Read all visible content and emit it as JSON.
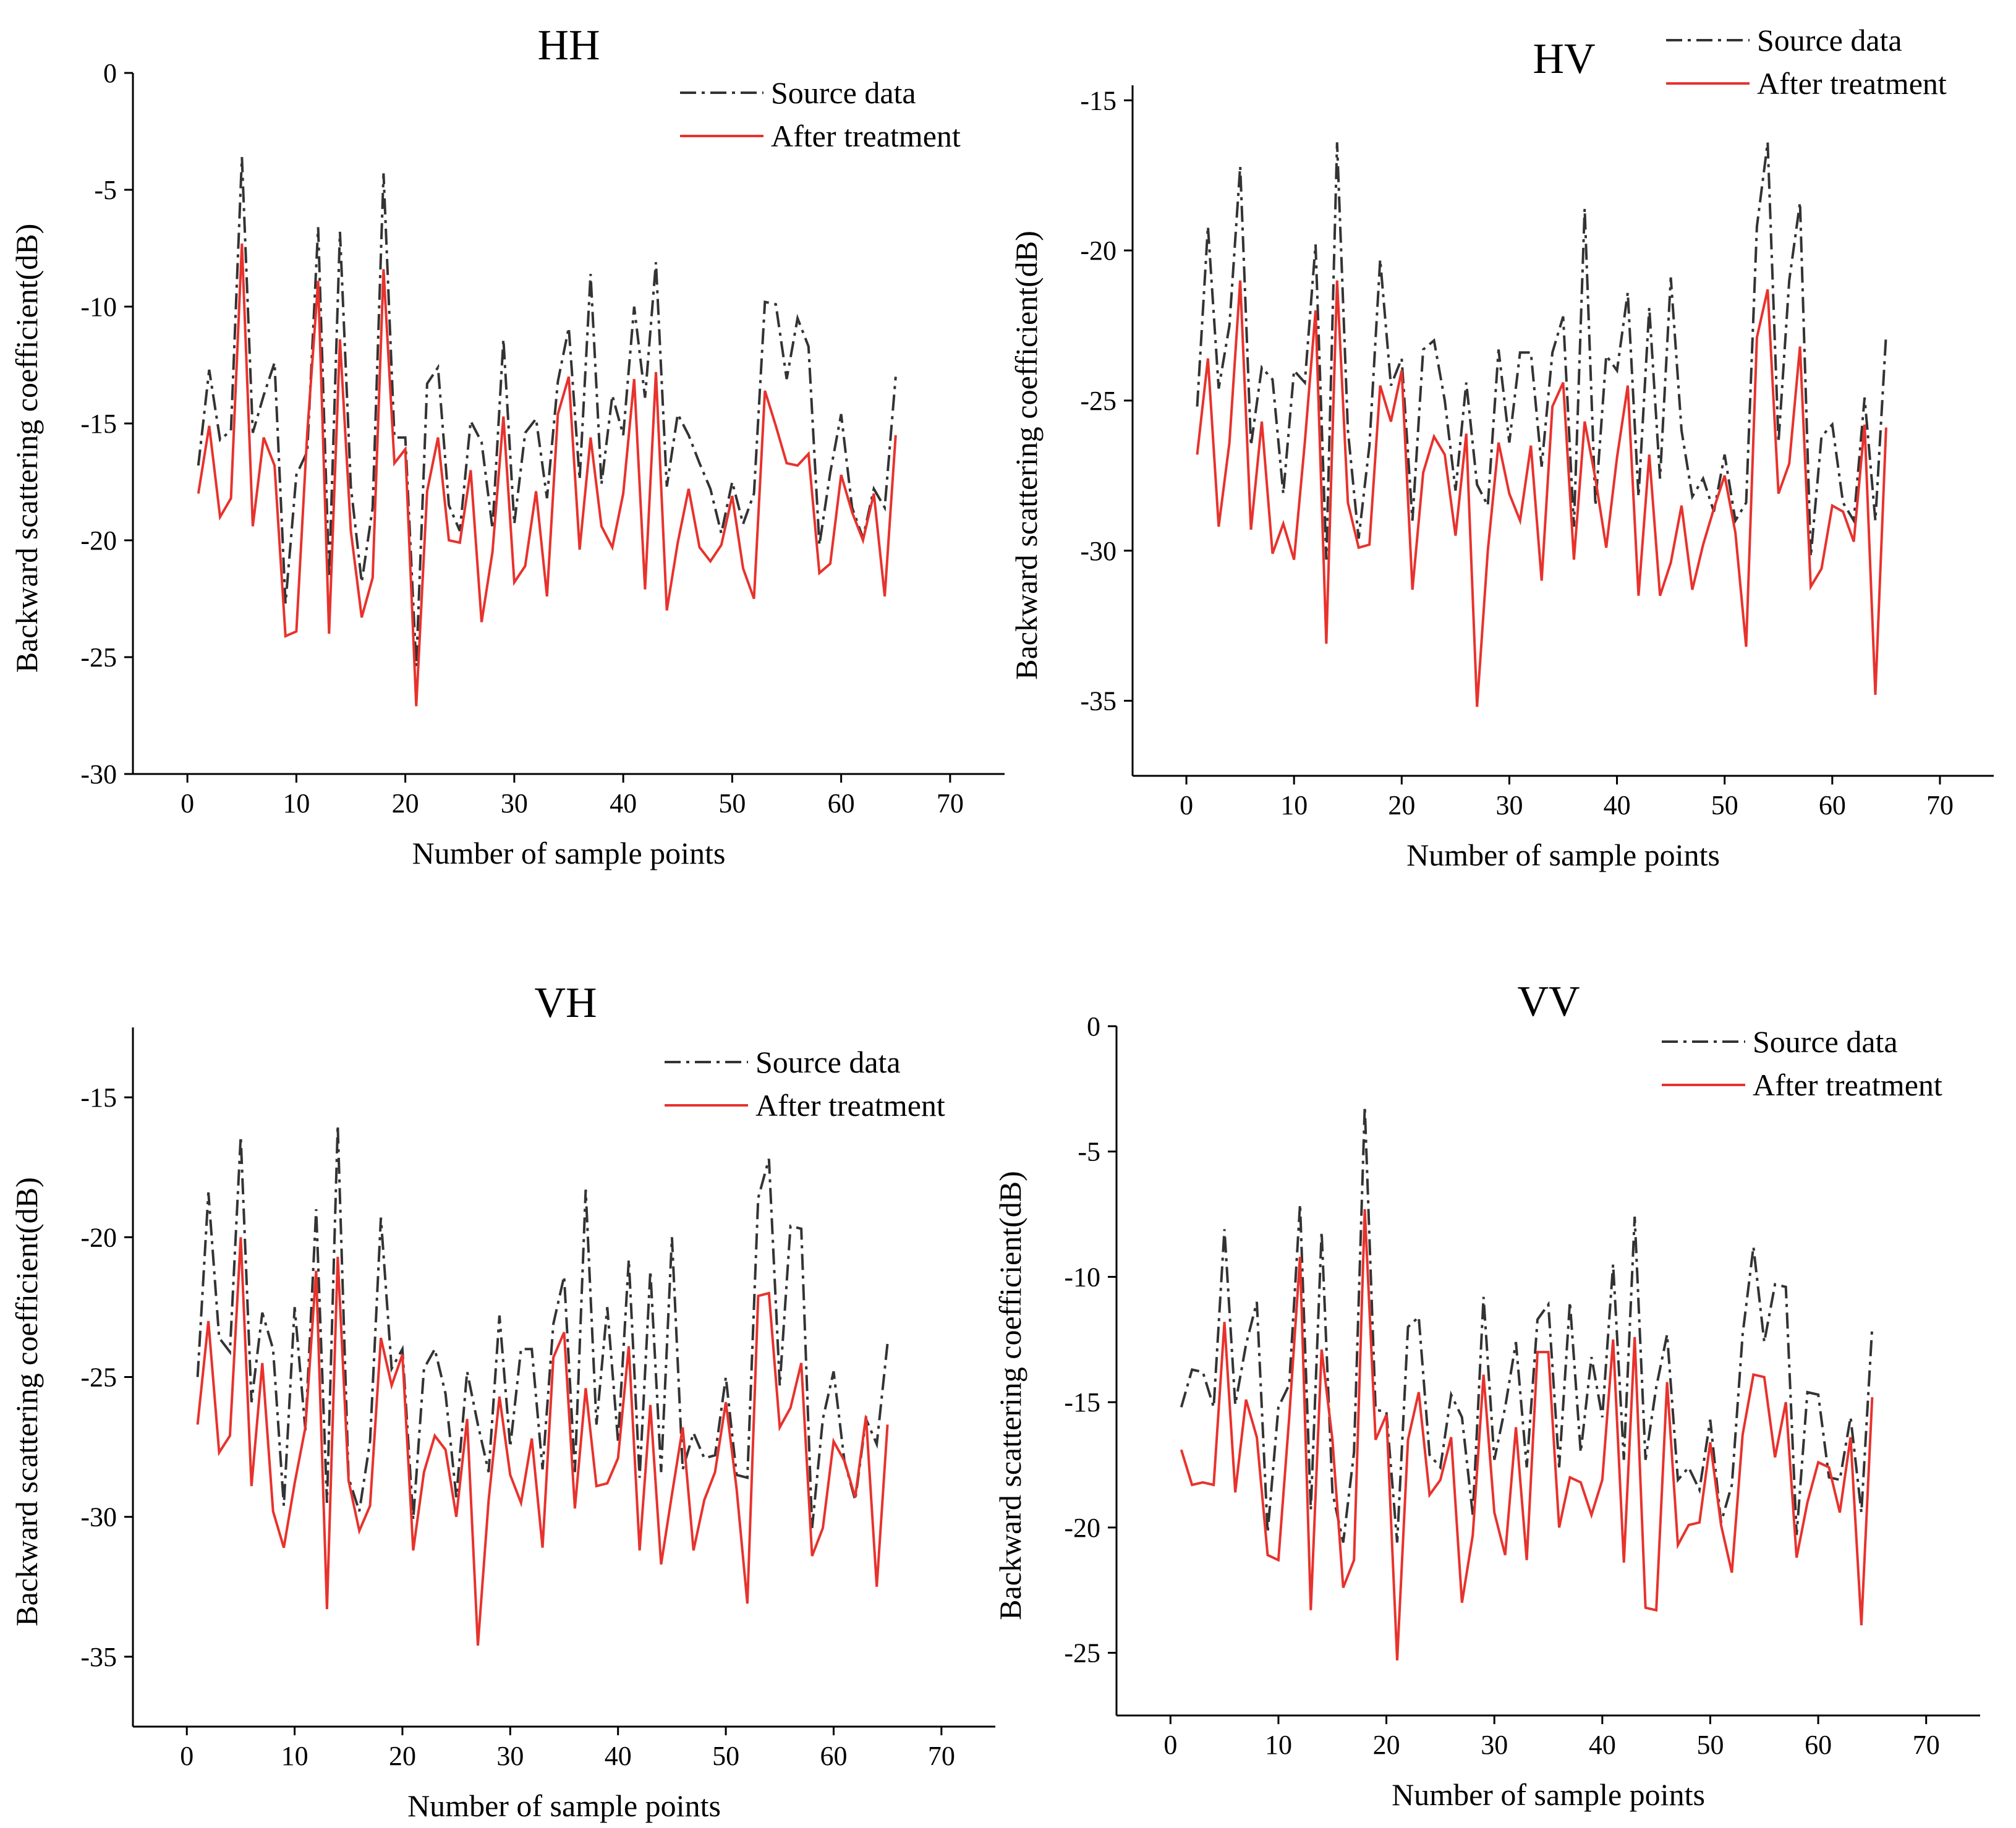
{
  "colors": {
    "source": "#333333",
    "treatment": "#e8322d"
  },
  "chart_data": [
    {
      "type": "line",
      "title": "HH",
      "xlabel": "Number of sample points",
      "ylabel": "Backward scattering coefficient(dB)",
      "xlim": [
        -5,
        75
      ],
      "ylim": [
        -30,
        0
      ],
      "xticks": [
        0,
        10,
        20,
        30,
        40,
        50,
        60,
        70
      ],
      "yticks": [
        0,
        -5,
        -10,
        -15,
        -20,
        -25,
        -30
      ],
      "legend_position": "top-right",
      "series": [
        {
          "name": "Source data",
          "values": [
            -16.8,
            -12.7,
            -15.7,
            -15.3,
            -3.6,
            -15.4,
            -13.8,
            -12.4,
            -22.7,
            -17.2,
            -16.2,
            -6.6,
            -21.6,
            -6.8,
            -17.7,
            -21.8,
            -18.6,
            -4.3,
            -15.6,
            -15.6,
            -25.4,
            -13.3,
            -12.6,
            -18.5,
            -19.6,
            -14.9,
            -15.8,
            -19.5,
            -11.4,
            -19.3,
            -15.4,
            -14.8,
            -18.2,
            -13.2,
            -10.9,
            -17.4,
            -8.6,
            -17.6,
            -13.8,
            -15.5,
            -10.0,
            -13.9,
            -8.1,
            -17.7,
            -14.6,
            -15.5,
            -16.7,
            -17.8,
            -19.7,
            -17.5,
            -19.3,
            -18.0,
            -9.8,
            -9.9,
            -13.1,
            -10.5,
            -11.7,
            -20.2,
            -17.1,
            -14.6,
            -18.6,
            -19.9,
            -17.8,
            -18.6,
            -13.0
          ]
        },
        {
          "name": "After treatment",
          "values": [
            -18.0,
            -15.1,
            -19.0,
            -18.2,
            -7.3,
            -19.4,
            -15.6,
            -16.8,
            -24.1,
            -23.9,
            -15.4,
            -8.9,
            -24.0,
            -11.4,
            -19.6,
            -23.3,
            -21.6,
            -8.4,
            -16.7,
            -16.1,
            -27.1,
            -17.9,
            -15.6,
            -20.0,
            -20.1,
            -17.0,
            -23.5,
            -20.5,
            -14.7,
            -21.8,
            -21.1,
            -17.9,
            -22.4,
            -14.6,
            -13.0,
            -20.4,
            -15.6,
            -19.4,
            -20.3,
            -18.0,
            -13.1,
            -22.1,
            -12.8,
            -23.0,
            -20.1,
            -17.8,
            -20.3,
            -20.9,
            -20.2,
            -18.1,
            -21.2,
            -22.5,
            -13.6,
            -15.1,
            -16.7,
            -16.8,
            -16.3,
            -21.4,
            -21.0,
            -17.2,
            -18.8,
            -20.0,
            -18.0,
            -22.4,
            -15.5
          ]
        }
      ]
    },
    {
      "type": "line",
      "title": "HV",
      "xlabel": "Number of sample points",
      "ylabel": "Backward scattering coefficient(dB)",
      "xlim": [
        -5,
        75
      ],
      "ylim": [
        -37.5,
        -14.5
      ],
      "xticks": [
        0,
        10,
        20,
        30,
        40,
        50,
        60,
        70
      ],
      "yticks": [
        -15,
        -20,
        -25,
        -30,
        -35
      ],
      "legend_position": "top-right",
      "series": [
        {
          "name": "Source data",
          "values": [
            -25.2,
            -19.2,
            -24.6,
            -22.5,
            -17.2,
            -26.5,
            -23.9,
            -24.3,
            -28.1,
            -24.0,
            -24.4,
            -19.8,
            -30.3,
            -16.4,
            -26.0,
            -29.6,
            -26.5,
            -20.3,
            -24.5,
            -23.6,
            -29.0,
            -23.3,
            -23.0,
            -25.0,
            -28.0,
            -24.4,
            -27.8,
            -28.5,
            -23.3,
            -26.4,
            -23.4,
            -23.4,
            -27.2,
            -23.4,
            -22.2,
            -29.2,
            -18.6,
            -28.5,
            -23.5,
            -24.0,
            -21.4,
            -28.2,
            -21.9,
            -27.6,
            -20.9,
            -26.0,
            -28.2,
            -27.6,
            -28.7,
            -26.8,
            -29.0,
            -28.4,
            -19.2,
            -16.4,
            -26.4,
            -21.0,
            -18.4,
            -30.2,
            -26.2,
            -25.8,
            -28.4,
            -29.0,
            -24.9,
            -29.0,
            -22.8
          ]
        },
        {
          "name": "After treatment",
          "values": [
            -26.8,
            -23.6,
            -29.2,
            -26.4,
            -21.0,
            -29.3,
            -25.7,
            -30.1,
            -29.1,
            -30.3,
            -26.4,
            -22.0,
            -33.1,
            -21.0,
            -28.4,
            -29.9,
            -29.8,
            -24.5,
            -25.7,
            -24.0,
            -31.3,
            -27.4,
            -26.2,
            -26.8,
            -29.5,
            -26.1,
            -35.2,
            -30.0,
            -26.4,
            -28.1,
            -29.0,
            -26.5,
            -31.0,
            -25.2,
            -24.4,
            -30.3,
            -25.7,
            -27.6,
            -29.9,
            -26.9,
            -24.5,
            -31.5,
            -26.8,
            -31.5,
            -30.4,
            -28.5,
            -31.3,
            -29.8,
            -28.6,
            -27.5,
            -29.4,
            -33.2,
            -22.9,
            -21.3,
            -28.1,
            -27.1,
            -23.2,
            -31.2,
            -30.6,
            -28.5,
            -28.7,
            -29.7,
            -25.8,
            -34.8,
            -25.9
          ]
        }
      ]
    },
    {
      "type": "line",
      "title": "VH",
      "xlabel": "Number of sample points",
      "ylabel": "Backward scattering coefficient(dB)",
      "xlim": [
        -5,
        75
      ],
      "ylim": [
        -37.5,
        -12.5
      ],
      "xticks": [
        0,
        10,
        20,
        30,
        40,
        50,
        60,
        70
      ],
      "yticks": [
        -15,
        -20,
        -25,
        -30,
        -35
      ],
      "legend_position": "top-right",
      "series": [
        {
          "name": "Source data",
          "values": [
            -25.0,
            -18.4,
            -23.6,
            -24.1,
            -16.4,
            -25.9,
            -22.7,
            -24.0,
            -29.6,
            -22.5,
            -26.9,
            -19.0,
            -29.5,
            -16.0,
            -28.6,
            -29.8,
            -27.3,
            -19.3,
            -24.7,
            -24.0,
            -30.1,
            -24.7,
            -24.0,
            -25.6,
            -29.3,
            -24.8,
            -26.7,
            -28.4,
            -22.8,
            -27.5,
            -24.0,
            -24.0,
            -28.3,
            -23.1,
            -21.4,
            -28.4,
            -18.3,
            -26.7,
            -22.5,
            -27.3,
            -20.8,
            -28.6,
            -21.2,
            -28.4,
            -20.0,
            -28.3,
            -27.0,
            -27.9,
            -27.8,
            -25.0,
            -28.5,
            -28.6,
            -18.6,
            -17.2,
            -25.3,
            -19.6,
            -19.7,
            -30.4,
            -26.5,
            -24.8,
            -28.0,
            -29.4,
            -26.5,
            -27.4,
            -23.8
          ]
        },
        {
          "name": "After treatment",
          "values": [
            -26.7,
            -23.0,
            -27.7,
            -27.1,
            -20.0,
            -28.9,
            -24.5,
            -29.8,
            -31.1,
            -28.8,
            -26.8,
            -21.2,
            -33.3,
            -20.7,
            -28.7,
            -30.5,
            -29.6,
            -23.6,
            -25.3,
            -24.2,
            -31.2,
            -28.4,
            -27.1,
            -27.6,
            -30.0,
            -26.5,
            -34.6,
            -29.4,
            -25.7,
            -28.5,
            -29.5,
            -27.2,
            -31.1,
            -24.3,
            -23.4,
            -29.7,
            -25.4,
            -28.9,
            -28.8,
            -27.9,
            -23.9,
            -31.2,
            -26.0,
            -31.7,
            -29.2,
            -26.8,
            -31.2,
            -29.4,
            -28.4,
            -25.9,
            -29.0,
            -33.1,
            -22.1,
            -22.0,
            -26.8,
            -26.1,
            -24.5,
            -31.4,
            -30.4,
            -27.3,
            -28.0,
            -29.3,
            -26.4,
            -32.5,
            -26.7
          ]
        }
      ]
    },
    {
      "type": "line",
      "title": "VV",
      "xlabel": "Number of sample points",
      "ylabel": "Backward scattering coefficient(dB)",
      "xlim": [
        -5,
        75
      ],
      "ylim": [
        -27.5,
        0
      ],
      "xticks": [
        0,
        10,
        20,
        30,
        40,
        50,
        60,
        70
      ],
      "yticks": [
        0,
        -5,
        -10,
        -15,
        -20,
        -25
      ],
      "legend_position": "top-right",
      "series": [
        {
          "name": "Source data",
          "values": [
            -15.2,
            -13.7,
            -13.8,
            -15.2,
            -8.1,
            -15.1,
            -12.7,
            -11.0,
            -20.2,
            -15.2,
            -14.3,
            -7.1,
            -19.3,
            -8.2,
            -18.6,
            -20.6,
            -17.0,
            -3.2,
            -15.3,
            -15.4,
            -20.6,
            -12.0,
            -11.6,
            -17.1,
            -17.6,
            -14.7,
            -15.6,
            -19.5,
            -10.8,
            -17.3,
            -15.2,
            -12.6,
            -17.6,
            -11.7,
            -11.1,
            -17.6,
            -11.0,
            -17.0,
            -13.2,
            -15.6,
            -9.5,
            -17.3,
            -7.6,
            -17.3,
            -14.4,
            -12.3,
            -18.1,
            -17.6,
            -18.5,
            -15.7,
            -19.8,
            -18.3,
            -12.3,
            -8.8,
            -12.6,
            -10.3,
            -10.4,
            -20.3,
            -14.6,
            -14.7,
            -18.0,
            -18.1,
            -15.6,
            -19.4,
            -12.0
          ]
        },
        {
          "name": "After treatment",
          "values": [
            -16.9,
            -18.3,
            -18.2,
            -18.3,
            -11.8,
            -18.6,
            -14.9,
            -16.4,
            -21.1,
            -21.3,
            -15.6,
            -9.2,
            -23.3,
            -12.9,
            -16.5,
            -22.4,
            -21.3,
            -7.3,
            -16.5,
            -15.5,
            -25.3,
            -16.5,
            -14.6,
            -18.7,
            -18.1,
            -16.4,
            -23.0,
            -20.3,
            -13.9,
            -19.4,
            -21.1,
            -16.0,
            -21.3,
            -13.0,
            -13.0,
            -20.0,
            -18.0,
            -18.2,
            -19.5,
            -18.1,
            -12.5,
            -21.4,
            -12.4,
            -23.2,
            -23.3,
            -14.2,
            -20.7,
            -19.9,
            -19.8,
            -16.6,
            -19.9,
            -21.8,
            -16.3,
            -13.9,
            -14.0,
            -17.2,
            -15.0,
            -21.2,
            -19.0,
            -17.4,
            -17.6,
            -19.4,
            -16.4,
            -23.9,
            -14.8
          ]
        }
      ]
    }
  ]
}
